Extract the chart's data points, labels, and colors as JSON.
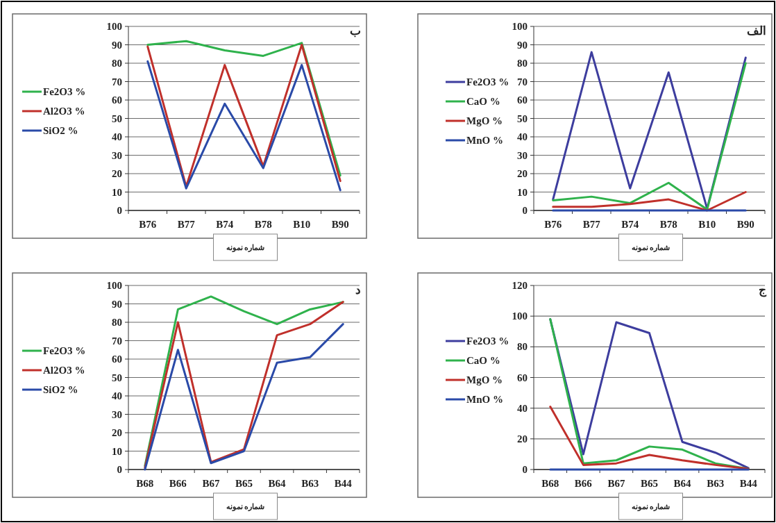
{
  "chart_data": [
    {
      "type": "line",
      "title": "الف",
      "xlabel": "شماره نمونه",
      "categories": [
        "B76",
        "B77",
        "B74",
        "B78",
        "B10",
        "B90"
      ],
      "ylim": [
        0,
        100
      ],
      "yticks": [
        0,
        10,
        20,
        30,
        40,
        50,
        60,
        70,
        80,
        90,
        100
      ],
      "grid": "y",
      "legend": "left",
      "marker": "none",
      "line_style": "solid",
      "series": [
        {
          "name": "Fe2O3 %",
          "color": "#3d3d9e",
          "values": [
            6,
            86,
            12,
            75,
            1,
            83
          ]
        },
        {
          "name": "CaO %",
          "color": "#2fb24c",
          "values": [
            5.5,
            7.5,
            4,
            15,
            0.5,
            80
          ]
        },
        {
          "name": "MgO %",
          "color": "#c0302b",
          "values": [
            2,
            2,
            3.5,
            6,
            0,
            10
          ]
        },
        {
          "name": "MnO %",
          "color": "#2a4aa8",
          "values": [
            0,
            0,
            0,
            0,
            0,
            0
          ]
        }
      ]
    },
    {
      "type": "line",
      "title": "ب",
      "xlabel": "شماره نمونه",
      "categories": [
        "B76",
        "B77",
        "B74",
        "B78",
        "B10",
        "B90"
      ],
      "ylim": [
        0,
        100
      ],
      "yticks": [
        0,
        10,
        20,
        30,
        40,
        50,
        60,
        70,
        80,
        90,
        100
      ],
      "grid": "y",
      "legend": "left",
      "marker": "none",
      "line_style": "solid",
      "series": [
        {
          "name": "Fe2O3 %",
          "color": "#2fb24c",
          "values": [
            90,
            92,
            87,
            84,
            91,
            19
          ]
        },
        {
          "name": "Al2O3 %",
          "color": "#c0302b",
          "values": [
            89,
            13,
            79,
            24,
            90,
            16
          ]
        },
        {
          "name": "SiO2 %",
          "color": "#2a4aa8",
          "values": [
            81,
            12,
            58,
            23,
            79,
            11
          ]
        }
      ]
    },
    {
      "type": "line",
      "title": "ج",
      "xlabel": "شماره نمونه",
      "categories": [
        "B68",
        "B66",
        "B67",
        "B65",
        "B64",
        "B63",
        "B44"
      ],
      "ylim": [
        0,
        120
      ],
      "yticks": [
        0,
        20,
        40,
        60,
        80,
        100,
        120
      ],
      "grid": "y",
      "legend": "left",
      "marker": "none",
      "line_style": "solid",
      "series": [
        {
          "name": "Fe2O3 %",
          "color": "#3d3d9e",
          "values": [
            98,
            10,
            96,
            89,
            18,
            11,
            1
          ]
        },
        {
          "name": "CaO %",
          "color": "#2fb24c",
          "values": [
            98,
            4,
            6,
            15,
            13,
            4,
            0.5
          ]
        },
        {
          "name": "MgO %",
          "color": "#c0302b",
          "values": [
            41,
            3,
            4,
            9.5,
            6,
            3,
            0.5
          ]
        },
        {
          "name": "MnO %",
          "color": "#2a4aa8",
          "values": [
            0,
            0,
            0,
            0,
            0,
            0,
            0
          ]
        }
      ]
    },
    {
      "type": "line",
      "title": "د",
      "xlabel": "شماره نمونه",
      "categories": [
        "B68",
        "B66",
        "B67",
        "B65",
        "B64",
        "B63",
        "B44"
      ],
      "ylim": [
        0,
        100
      ],
      "yticks": [
        0,
        10,
        20,
        30,
        40,
        50,
        60,
        70,
        80,
        90,
        100
      ],
      "grid": "y",
      "legend": "left",
      "marker": "none",
      "line_style": "solid",
      "series": [
        {
          "name": "Fe2O3 %",
          "color": "#2fb24c",
          "values": [
            2,
            87,
            94,
            86,
            79,
            87,
            91
          ]
        },
        {
          "name": "Al2O3 %",
          "color": "#c0302b",
          "values": [
            1,
            80,
            4,
            11,
            73,
            79,
            91
          ]
        },
        {
          "name": "SiO2 %",
          "color": "#2a4aa8",
          "values": [
            0,
            65,
            3.5,
            10,
            58,
            61,
            79
          ]
        }
      ]
    }
  ]
}
